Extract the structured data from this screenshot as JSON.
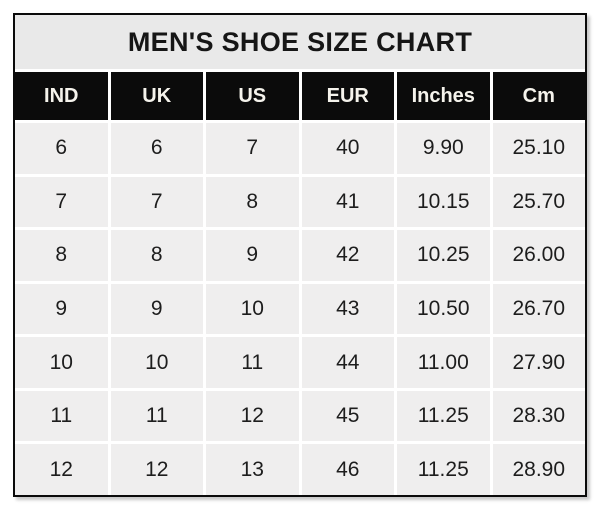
{
  "table": {
    "title": "MEN'S SHOE SIZE CHART",
    "columns": [
      "IND",
      "UK",
      "US",
      "EUR",
      "Inches",
      "Cm"
    ],
    "rows": [
      [
        "6",
        "6",
        "7",
        "40",
        "9.90",
        "25.10"
      ],
      [
        "7",
        "7",
        "8",
        "41",
        "10.15",
        "25.70"
      ],
      [
        "8",
        "8",
        "9",
        "42",
        "10.25",
        "26.00"
      ],
      [
        "9",
        "9",
        "10",
        "43",
        "10.50",
        "26.70"
      ],
      [
        "10",
        "10",
        "11",
        "44",
        "11.00",
        "27.90"
      ],
      [
        "11",
        "11",
        "12",
        "45",
        "11.25",
        "28.30"
      ],
      [
        "12",
        "12",
        "13",
        "46",
        "11.25",
        "28.90"
      ]
    ]
  },
  "colors": {
    "outer_border": "#0a0a0a",
    "title_background": "#e9e9e9",
    "title_text": "#161616",
    "header_background": "#0b0b0b",
    "header_text": "#f5f3ec",
    "cell_background": "#efeeee",
    "cell_text": "#1d1d1d",
    "gridline": "#ffffff"
  }
}
